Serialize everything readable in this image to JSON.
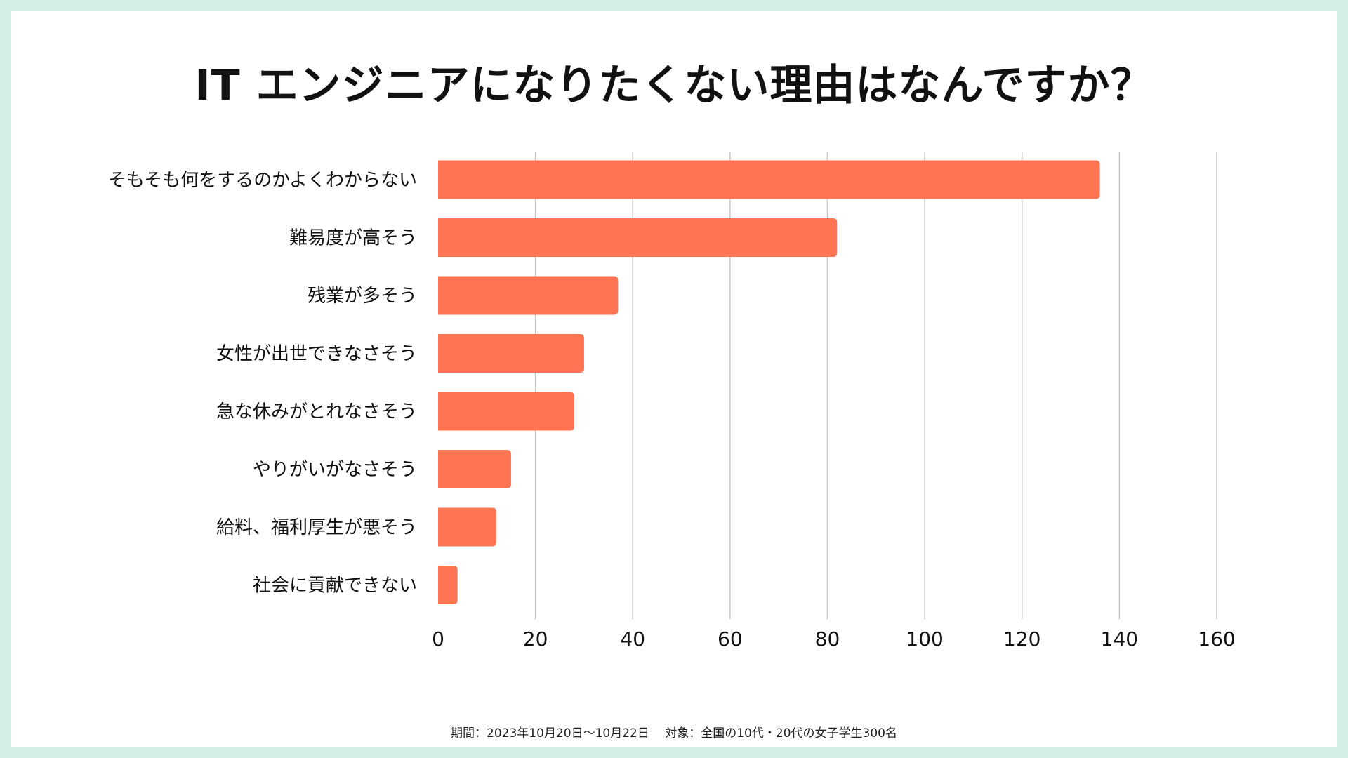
{
  "chart_data": {
    "type": "bar",
    "orientation": "horizontal",
    "title": "IT エンジニアになりたくない理由はなんですか？",
    "categories": [
      "そもそも何をするのかよくわからない",
      "難易度が高そう",
      "残業が多そう",
      "女性が出世できなさそう",
      "急な休みがとれなさそう",
      "やりがいがなさそう",
      "給料、福利厚生が悪そう",
      "社会に貢献できない"
    ],
    "values": [
      136,
      82,
      37,
      30,
      28,
      15,
      12,
      4
    ],
    "xlim": [
      0,
      160
    ],
    "xticks": [
      "0",
      "20",
      "40",
      "60",
      "80",
      "100",
      "120",
      "140",
      "160"
    ],
    "xlabel": "",
    "ylabel": "",
    "grid": true,
    "legend": "none",
    "bar_color": "#ff7452",
    "grid_color": "#c4c4c4"
  },
  "footnote": "期間：2023年10月20日〜10月22日　 対象：全国の10代・20代の女子学生300名"
}
